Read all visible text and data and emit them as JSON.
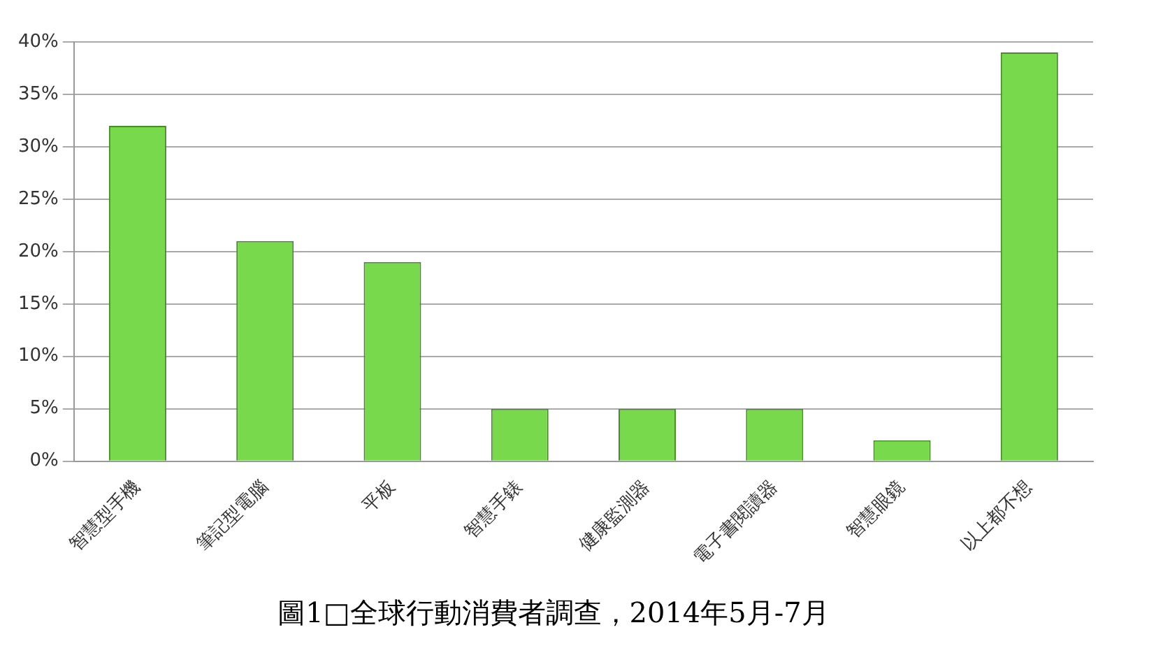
{
  "chart_data": {
    "type": "bar",
    "title": "圖1□全球行動消費者調查，2014年5月-7月",
    "categories": [
      "智慧型手機",
      "筆記型電腦",
      "平板",
      "智慧手錶",
      "健康監測器",
      "電子書閱讀器",
      "智慧眼鏡",
      "以上都不想"
    ],
    "values": [
      32,
      21,
      19,
      5,
      5,
      5,
      2,
      39
    ],
    "color": "#77d94b",
    "ylim": [
      0,
      40
    ],
    "yticks": [
      {
        "value": 0,
        "label": "0%"
      },
      {
        "value": 5,
        "label": "5%"
      },
      {
        "value": 10,
        "label": "10%"
      },
      {
        "value": 15,
        "label": "15%"
      },
      {
        "value": 20,
        "label": "20%"
      },
      {
        "value": 25,
        "label": "25%"
      },
      {
        "value": 30,
        "label": "30%"
      },
      {
        "value": 35,
        "label": "35%"
      },
      {
        "value": 40,
        "label": "40%"
      }
    ],
    "grid": "y",
    "legend": false
  }
}
